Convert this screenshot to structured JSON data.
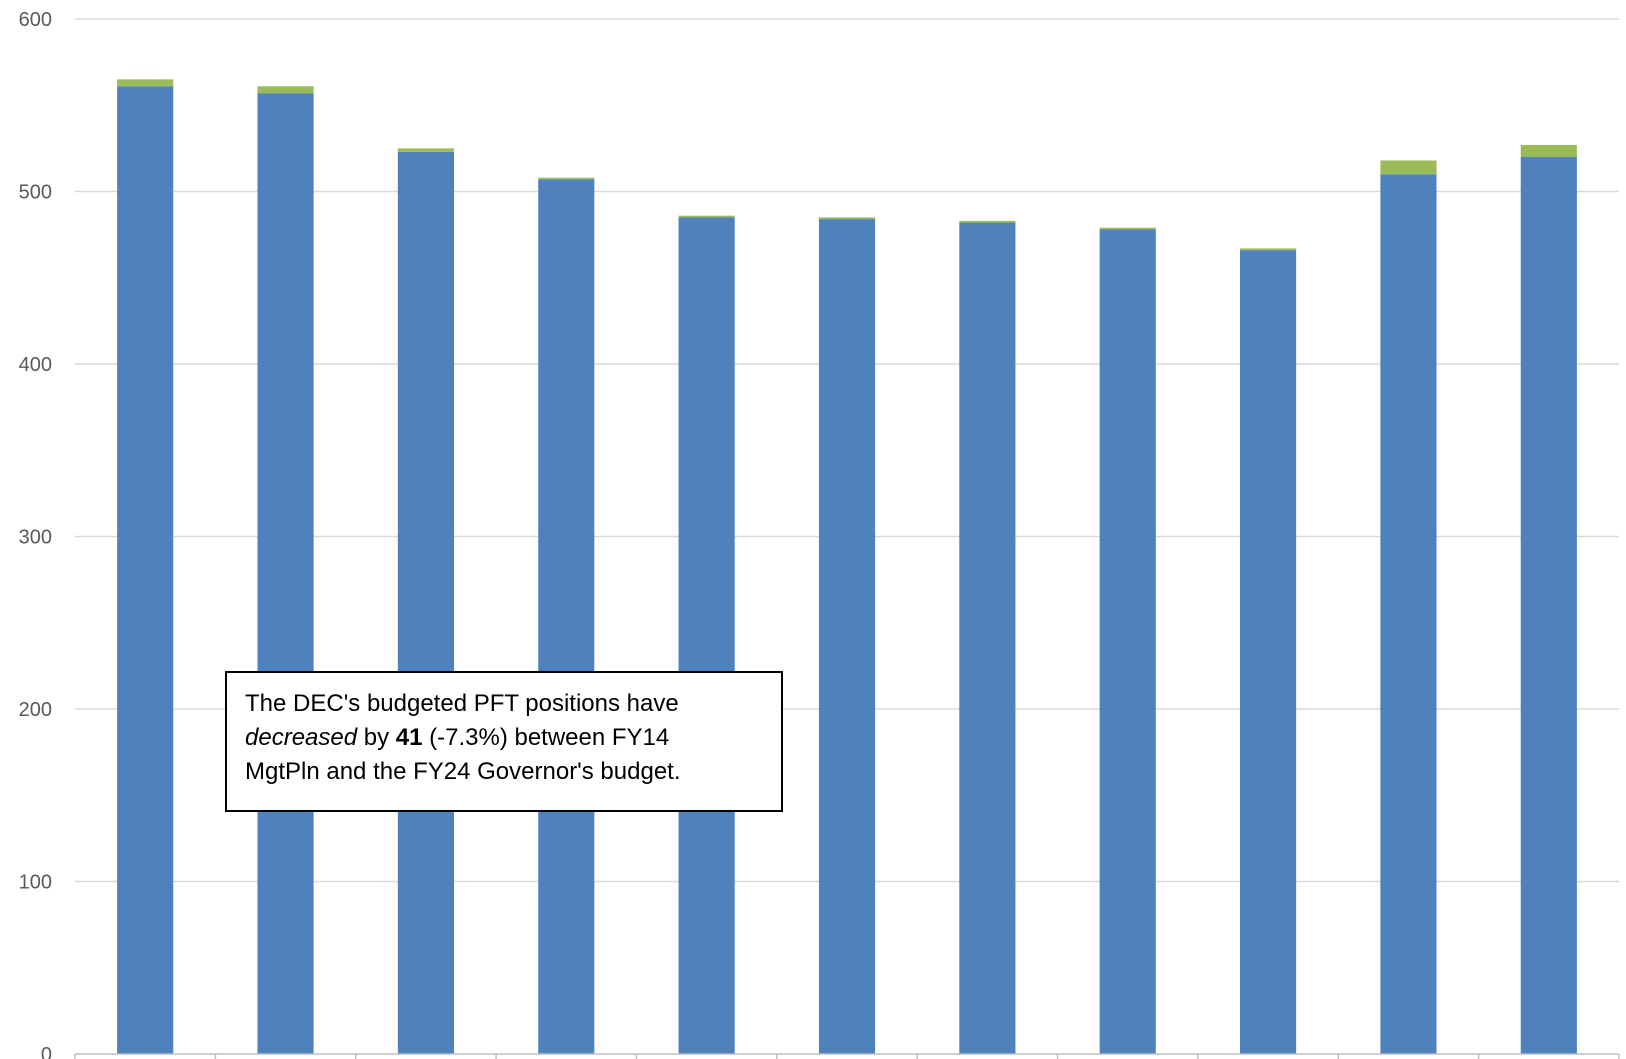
{
  "chart_data": {
    "type": "bar",
    "stacked": true,
    "categories": [
      "",
      "",
      "",
      "",
      "",
      "",
      "",
      "",
      "",
      "",
      ""
    ],
    "series": [
      {
        "values": [
          561,
          557,
          523,
          507,
          485,
          484,
          482,
          478,
          466,
          510,
          520
        ],
        "color": "#4F81BD"
      },
      {
        "values": [
          4,
          4,
          2,
          1,
          1,
          1,
          1,
          1,
          1,
          8,
          7
        ],
        "color": "#9BBB59"
      }
    ],
    "ylim": [
      0,
      600
    ],
    "yticks": [
      0,
      100,
      200,
      300,
      400,
      500,
      600
    ],
    "grid": true,
    "gridColor": "#D9D9D9",
    "axisColor": "#BFBFBF",
    "legend": "none"
  },
  "annotation": {
    "line1": "The DEC's budgeted PFT positions have",
    "decreased": "decreased",
    "by": " by ",
    "amount": "41",
    "rest": " (-7.3%) between FY14",
    "line3": "MgtPln and the FY24 Governor's budget."
  }
}
